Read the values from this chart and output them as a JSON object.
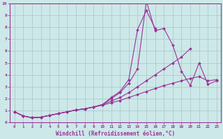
{
  "xlabel": "Windchill (Refroidissement éolien,°C)",
  "bg_color": "#cde8e8",
  "grid_color": "#aacccc",
  "line_color": "#993399",
  "xlim": [
    -0.5,
    23.5
  ],
  "ylim": [
    0,
    10
  ],
  "series": [
    {
      "x": [
        0,
        1,
        2,
        3,
        4,
        5,
        6,
        7,
        8,
        9,
        10,
        11,
        12,
        13,
        14,
        15,
        16,
        17,
        18,
        19,
        20,
        21,
        22,
        23
      ],
      "y": [
        0.9,
        0.55,
        0.4,
        0.45,
        0.6,
        0.75,
        0.9,
        1.05,
        1.15,
        1.3,
        1.5,
        2.0,
        2.5,
        3.3,
        4.5,
        10.2,
        7.7,
        7.9,
        6.5,
        4.3,
        3.1,
        5.0,
        3.2,
        3.5
      ]
    },
    {
      "x": [
        0,
        1,
        2,
        3,
        4,
        5,
        6,
        7,
        8,
        9,
        10,
        11,
        12,
        13,
        14,
        15,
        16
      ],
      "y": [
        0.9,
        0.55,
        0.4,
        0.45,
        0.6,
        0.75,
        0.9,
        1.05,
        1.15,
        1.3,
        1.5,
        2.1,
        2.6,
        3.6,
        7.8,
        9.4,
        7.9
      ]
    },
    {
      "x": [
        0,
        1,
        2,
        3,
        4,
        5,
        6,
        7,
        8,
        9,
        10,
        11,
        12,
        13,
        14,
        15,
        16,
        17,
        18,
        19,
        20
      ],
      "y": [
        0.9,
        0.55,
        0.4,
        0.45,
        0.6,
        0.75,
        0.9,
        1.05,
        1.15,
        1.3,
        1.5,
        1.8,
        2.1,
        2.5,
        3.0,
        3.5,
        4.0,
        4.5,
        5.0,
        5.5,
        6.2
      ]
    },
    {
      "x": [
        0,
        1,
        2,
        3,
        4,
        5,
        6,
        7,
        8,
        9,
        10,
        11,
        12,
        13,
        14,
        15,
        16,
        17,
        18,
        19,
        20,
        21,
        22,
        23
      ],
      "y": [
        0.9,
        0.55,
        0.4,
        0.45,
        0.6,
        0.75,
        0.9,
        1.05,
        1.15,
        1.3,
        1.45,
        1.65,
        1.85,
        2.1,
        2.35,
        2.6,
        2.85,
        3.1,
        3.3,
        3.5,
        3.7,
        3.85,
        3.5,
        3.6
      ]
    }
  ],
  "xtick_labels": [
    "0",
    "1",
    "2",
    "3",
    "4",
    "5",
    "6",
    "7",
    "8",
    "9",
    "10",
    "11",
    "12",
    "13",
    "14",
    "15",
    "16",
    "17",
    "18",
    "19",
    "20",
    "21",
    "22",
    "23"
  ],
  "ytick_labels": [
    "0",
    "1",
    "2",
    "3",
    "4",
    "5",
    "6",
    "7",
    "8",
    "9",
    "10"
  ]
}
